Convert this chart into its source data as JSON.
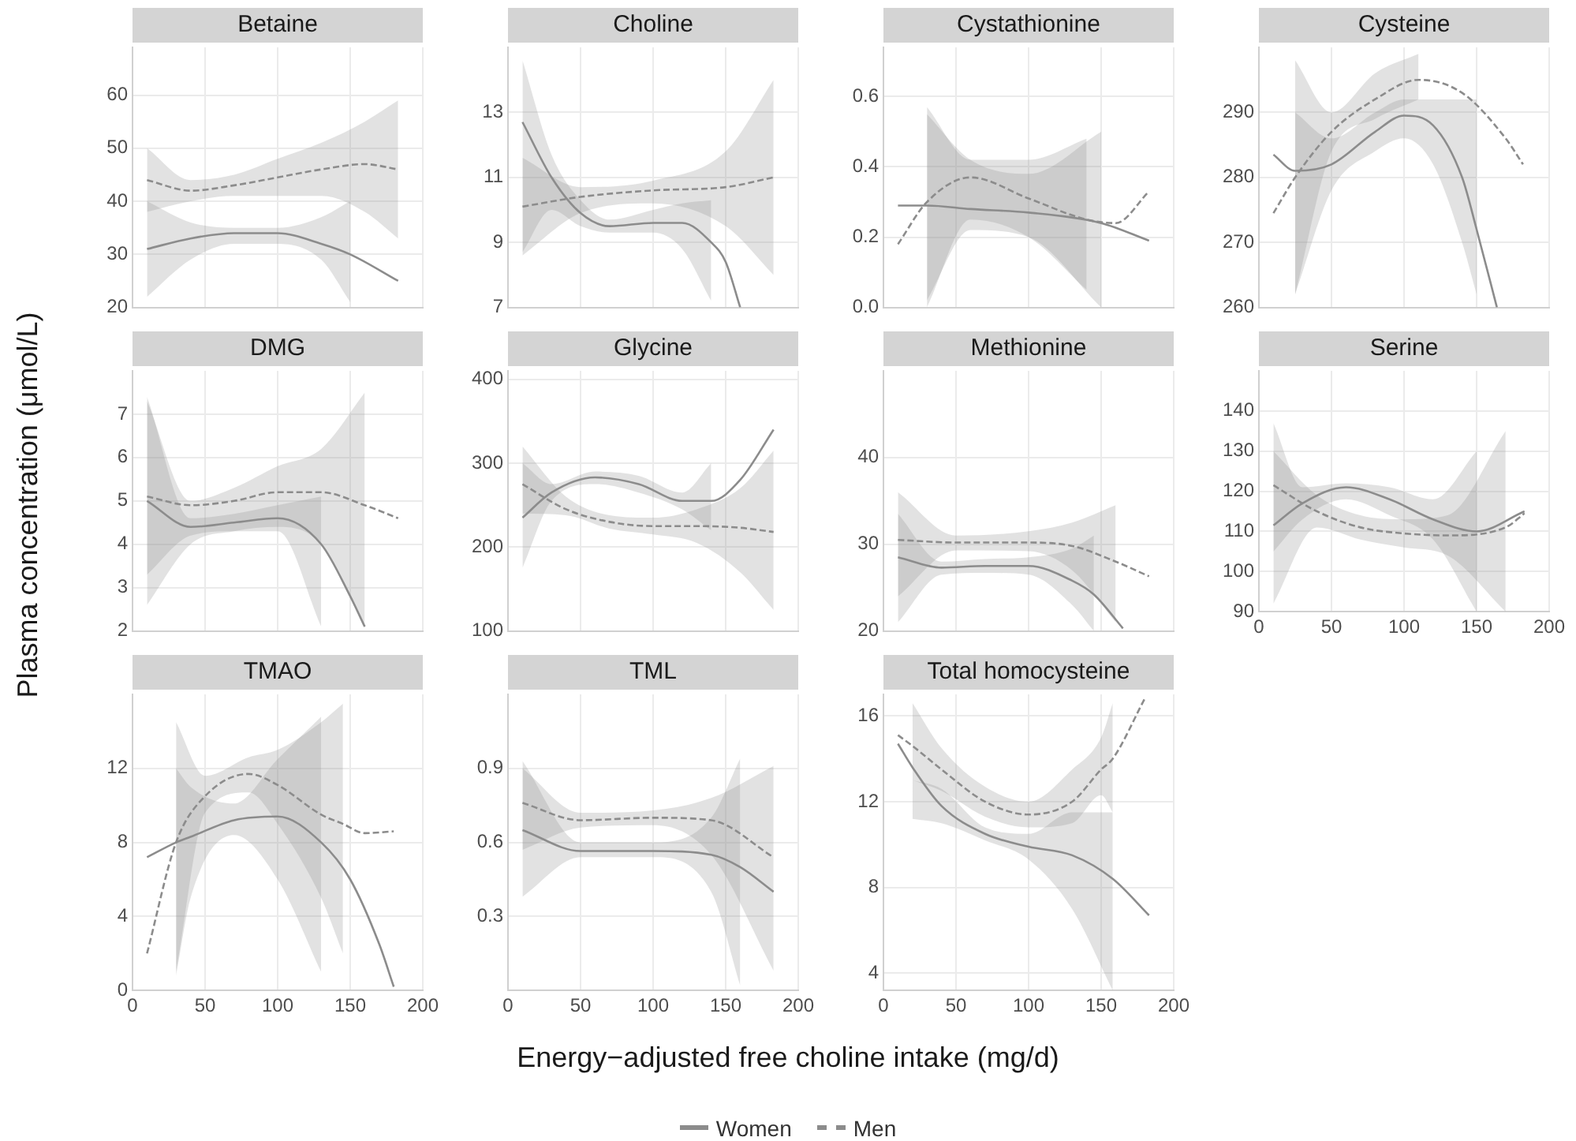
{
  "chart_data": [
    {
      "type": "line",
      "title": "Betaine",
      "xlabel": "Energy−adjusted free choline intake (mg/d)",
      "ylabel": "Plasma concentration (μmol/L)",
      "legend": "bottom",
      "grid": true,
      "marker": "none",
      "tick_labels": "y",
      "xlim": [
        0,
        200
      ],
      "xticks": [
        0,
        50,
        100,
        150,
        200
      ],
      "ylim": [
        20,
        69
      ],
      "yticks": [
        20,
        30,
        40,
        50,
        60
      ],
      "series": [
        {
          "name": "Women",
          "color": "#8c8c8c",
          "line_style": "solid",
          "x": [
            10,
            40,
            70,
            100,
            130,
            150,
            183
          ],
          "values": [
            31,
            33,
            34,
            34,
            32,
            30,
            25
          ],
          "lower": [
            22,
            29,
            32,
            32,
            29,
            21,
            null
          ],
          "upper": [
            40,
            36,
            35,
            35,
            37,
            40,
            null
          ]
        },
        {
          "name": "Men",
          "color": "#8c8c8c",
          "line_style": "dashed",
          "x": [
            10,
            40,
            70,
            100,
            130,
            160,
            183
          ],
          "values": [
            44,
            42,
            43,
            44.5,
            46,
            47,
            46
          ],
          "lower": [
            38,
            40,
            41,
            41,
            41,
            38,
            33
          ],
          "upper": [
            50,
            44,
            45,
            48,
            51,
            55,
            59
          ]
        }
      ]
    },
    {
      "type": "line",
      "title": "Choline",
      "grid": true,
      "marker": "none",
      "tick_labels": "y",
      "xlim": [
        0,
        200
      ],
      "xticks": [
        0,
        50,
        100,
        150,
        200
      ],
      "ylim": [
        7,
        15
      ],
      "yticks": [
        7,
        9,
        11,
        13
      ],
      "series": [
        {
          "color": "#8c8c8c",
          "line_style": "solid",
          "x": [
            10,
            30,
            50,
            70,
            100,
            120,
            140,
            150,
            160
          ],
          "values": [
            12.7,
            11,
            9.9,
            9.5,
            9.6,
            9.6,
            9,
            8.4,
            7
          ],
          "lower": [
            8.7,
            10,
            9.5,
            9.3,
            9.3,
            8.8,
            7.2,
            null,
            null
          ],
          "upper": [
            14.6,
            11.7,
            10.3,
            9.7,
            10,
            10.2,
            10.3,
            null,
            null
          ]
        },
        {
          "color": "#8c8c8c",
          "line_style": "dashed",
          "x": [
            10,
            50,
            100,
            150,
            183
          ],
          "values": [
            10.1,
            10.4,
            10.6,
            10.7,
            11
          ],
          "lower": [
            8.6,
            9.9,
            10.2,
            9.5,
            8
          ],
          "upper": [
            11.6,
            10.7,
            10.9,
            11.8,
            14
          ]
        }
      ]
    },
    {
      "type": "line",
      "title": "Cystathionine",
      "grid": true,
      "marker": "none",
      "tick_labels": "y",
      "xlim": [
        0,
        200
      ],
      "xticks": [
        0,
        50,
        100,
        150,
        200
      ],
      "ylim": [
        0,
        0.74
      ],
      "yticks": [
        {
          "value": 0,
          "label": "0.0"
        },
        0.2,
        0.4,
        0.6
      ],
      "series": [
        {
          "color": "#8c8c8c",
          "line_style": "solid",
          "x": [
            10,
            30,
            60,
            100,
            150,
            183
          ],
          "values": [
            0.29,
            0.29,
            0.28,
            0.27,
            0.24,
            0.19
          ],
          "lower": [
            null,
            0.02,
            0.22,
            0.2,
            0,
            null
          ],
          "upper": [
            null,
            0.55,
            0.42,
            0.38,
            0.5,
            null
          ]
        },
        {
          "color": "#8c8c8c",
          "line_style": "dashed",
          "x": [
            10,
            30,
            60,
            100,
            140,
            160,
            183
          ],
          "values": [
            0.18,
            0.3,
            0.37,
            0.31,
            0.25,
            0.24,
            0.33
          ],
          "lower": [
            null,
            0,
            0.25,
            0.2,
            0.05,
            null,
            null
          ],
          "upper": [
            null,
            0.57,
            0.42,
            0.42,
            0.48,
            null,
            null
          ]
        }
      ]
    },
    {
      "type": "line",
      "title": "Cysteine",
      "grid": true,
      "marker": "none",
      "tick_labels": "y",
      "xlim": [
        0,
        200
      ],
      "xticks": [
        0,
        50,
        100,
        150,
        200
      ],
      "ylim": [
        260,
        300
      ],
      "yticks": [
        260,
        270,
        280,
        290
      ],
      "series": [
        {
          "color": "#8c8c8c",
          "line_style": "solid",
          "x": [
            10,
            25,
            50,
            80,
            100,
            120,
            140,
            150,
            164
          ],
          "values": [
            283.5,
            281,
            282,
            287,
            289.5,
            288,
            280,
            272,
            260
          ],
          "lower": [
            null,
            262,
            278,
            284,
            286,
            282,
            270,
            262,
            null
          ],
          "upper": [
            null,
            290,
            286,
            290,
            292,
            292,
            292,
            292,
            null
          ]
        },
        {
          "color": "#8c8c8c",
          "line_style": "dashed",
          "x": [
            10,
            25,
            50,
            80,
            110,
            140,
            170,
            182
          ],
          "values": [
            274.5,
            280,
            287,
            292,
            295,
            293,
            286,
            282
          ],
          "lower": [
            null,
            262,
            284,
            289,
            292,
            null,
            null,
            null
          ],
          "upper": [
            null,
            298,
            290,
            296,
            299,
            null,
            null,
            null
          ]
        }
      ]
    },
    {
      "type": "line",
      "title": "DMG",
      "grid": true,
      "marker": "none",
      "tick_labels": "y",
      "xlim": [
        0,
        200
      ],
      "xticks": [
        0,
        50,
        100,
        150,
        200
      ],
      "ylim": [
        2,
        8
      ],
      "yticks": [
        2,
        3,
        4,
        5,
        6,
        7
      ],
      "series": [
        {
          "color": "#8c8c8c",
          "line_style": "solid",
          "x": [
            10,
            40,
            70,
            100,
            130,
            150,
            160
          ],
          "values": [
            5,
            4.4,
            4.5,
            4.6,
            4,
            2.8,
            2.1
          ],
          "lower": [
            3.3,
            4.2,
            4.3,
            4.3,
            2.1,
            null,
            null
          ],
          "upper": [
            7.4,
            4.6,
            4.7,
            4.9,
            5.1,
            null,
            null
          ]
        },
        {
          "color": "#8c8c8c",
          "line_style": "dashed",
          "x": [
            10,
            40,
            70,
            100,
            130,
            160,
            183
          ],
          "values": [
            5.1,
            4.9,
            5,
            5.2,
            5.2,
            4.9,
            4.6
          ],
          "lower": [
            2.6,
            4,
            4.3,
            4.4,
            4,
            2.1,
            null
          ],
          "upper": [
            7.3,
            5,
            5.3,
            5.8,
            6.2,
            7.5,
            null
          ]
        }
      ]
    },
    {
      "type": "line",
      "title": "Glycine",
      "grid": true,
      "marker": "none",
      "tick_labels": "y",
      "xlim": [
        0,
        200
      ],
      "xticks": [
        0,
        50,
        100,
        150,
        200
      ],
      "ylim": [
        100,
        410
      ],
      "yticks": [
        100,
        200,
        300,
        400
      ],
      "series": [
        {
          "color": "#8c8c8c",
          "line_style": "solid",
          "x": [
            10,
            30,
            60,
            90,
            120,
            140,
            160,
            183
          ],
          "values": [
            235,
            265,
            283,
            275,
            255,
            255,
            280,
            340
          ],
          "lower": [
            175,
            255,
            275,
            265,
            245,
            220,
            null,
            null
          ],
          "upper": [
            300,
            275,
            290,
            285,
            265,
            300,
            null,
            null
          ]
        },
        {
          "color": "#8c8c8c",
          "line_style": "dashed",
          "x": [
            10,
            40,
            70,
            100,
            130,
            160,
            183
          ],
          "values": [
            275,
            245,
            230,
            225,
            225,
            223,
            218
          ],
          "lower": [
            240,
            238,
            222,
            215,
            205,
            170,
            125
          ],
          "upper": [
            320,
            260,
            238,
            235,
            245,
            270,
            315
          ]
        }
      ]
    },
    {
      "type": "line",
      "title": "Methionine",
      "grid": true,
      "marker": "none",
      "tick_labels": "y",
      "xlim": [
        0,
        200
      ],
      "xticks": [
        0,
        50,
        100,
        150,
        200
      ],
      "ylim": [
        20,
        50
      ],
      "yticks": [
        20,
        30,
        40
      ],
      "series": [
        {
          "color": "#8c8c8c",
          "line_style": "solid",
          "x": [
            10,
            40,
            70,
            100,
            130,
            145,
            165
          ],
          "values": [
            28.5,
            27.3,
            27.5,
            27.5,
            25.8,
            24.2,
            20.3
          ],
          "lower": [
            21,
            26.5,
            26.7,
            26.5,
            23,
            20,
            null
          ],
          "upper": [
            33.5,
            28,
            28.3,
            28.5,
            29.5,
            31,
            null
          ]
        },
        {
          "color": "#8c8c8c",
          "line_style": "dashed",
          "x": [
            10,
            50,
            100,
            130,
            160,
            183
          ],
          "values": [
            30.5,
            30.2,
            30.2,
            29.8,
            28,
            26.3
          ],
          "lower": [
            24,
            29.3,
            29.2,
            27,
            21,
            null
          ],
          "upper": [
            36,
            31,
            31.5,
            32.5,
            34.5,
            null
          ]
        }
      ]
    },
    {
      "type": "line",
      "title": "Serine",
      "grid": true,
      "marker": "none",
      "xlim": [
        0,
        200
      ],
      "xticks": [
        0,
        50,
        100,
        150,
        200
      ],
      "ylim": [
        90,
        150
      ],
      "yticks": [
        90,
        100,
        110,
        120,
        130,
        140
      ],
      "series": [
        {
          "color": "#8c8c8c",
          "line_style": "solid",
          "x": [
            10,
            30,
            60,
            90,
            120,
            150,
            183
          ],
          "values": [
            111.5,
            117,
            121,
            118,
            113,
            110,
            115
          ],
          "lower": [
            105,
            113,
            118,
            114,
            108,
            90,
            null
          ],
          "upper": [
            137,
            121,
            122,
            121,
            118,
            130,
            null
          ]
        },
        {
          "color": "#8c8c8c",
          "line_style": "dashed",
          "x": [
            10,
            40,
            70,
            100,
            130,
            170,
            183
          ],
          "values": [
            121.5,
            115,
            111,
            109.5,
            109,
            111,
            114.5
          ],
          "lower": [
            92,
            111,
            108,
            106,
            104,
            90,
            null
          ],
          "upper": [
            130,
            119,
            114,
            113,
            114,
            135,
            null
          ]
        }
      ]
    },
    {
      "type": "line",
      "title": "TMAO",
      "grid": true,
      "marker": "none",
      "xlim": [
        0,
        200
      ],
      "xticks": [
        0,
        50,
        100,
        150,
        200
      ],
      "ylim": [
        0,
        16
      ],
      "yticks": [
        0,
        4,
        8,
        12
      ],
      "series": [
        {
          "color": "#8c8c8c",
          "line_style": "solid",
          "x": [
            10,
            30,
            40,
            70,
            100,
            130,
            150,
            170,
            180
          ],
          "values": [
            7.2,
            8,
            8.3,
            9.2,
            9.4,
            8,
            6,
            2.5,
            0.2
          ],
          "lower": [
            null,
            0.8,
            5,
            8.4,
            6,
            1,
            null,
            null,
            null
          ],
          "upper": [
            null,
            12,
            11,
            10.1,
            12.5,
            14.8,
            null,
            null,
            null
          ]
        },
        {
          "color": "#8c8c8c",
          "line_style": "dashed",
          "x": [
            10,
            30,
            50,
            80,
            100,
            130,
            145,
            160,
            180
          ],
          "values": [
            2,
            8,
            10.5,
            11.7,
            11.1,
            9.5,
            9,
            8.5,
            8.6
          ],
          "lower": [
            null,
            1,
            9.6,
            10.7,
            9,
            5,
            2,
            null,
            null
          ],
          "upper": [
            null,
            14.5,
            11.6,
            12.6,
            13,
            14.5,
            15.5,
            null,
            null
          ]
        }
      ]
    },
    {
      "type": "line",
      "title": "TML",
      "grid": true,
      "marker": "none",
      "xlim": [
        0,
        200
      ],
      "xticks": [
        0,
        50,
        100,
        150,
        200
      ],
      "ylim": [
        0,
        1.2
      ],
      "yticks": [
        0.3,
        0.6,
        0.9
      ],
      "series": [
        {
          "color": "#8c8c8c",
          "line_style": "solid",
          "x": [
            10,
            50,
            100,
            140,
            160,
            183
          ],
          "values": [
            0.65,
            0.565,
            0.565,
            0.55,
            0.5,
            0.4
          ],
          "lower": [
            0.38,
            0.54,
            0.54,
            0.4,
            0.02,
            null
          ],
          "upper": [
            0.93,
            0.6,
            0.6,
            0.7,
            0.94,
            null
          ]
        },
        {
          "color": "#8c8c8c",
          "line_style": "dashed",
          "x": [
            10,
            50,
            100,
            140,
            183
          ],
          "values": [
            0.76,
            0.69,
            0.7,
            0.69,
            0.54
          ],
          "lower": [
            0.57,
            0.66,
            0.67,
            0.55,
            0.08
          ],
          "upper": [
            0.9,
            0.72,
            0.73,
            0.78,
            0.91
          ]
        }
      ]
    },
    {
      "type": "line",
      "title": "Total homocysteine",
      "grid": true,
      "marker": "none",
      "xlim": [
        0,
        200
      ],
      "xticks": [
        0,
        50,
        100,
        150,
        200
      ],
      "ylim": [
        3.2,
        17
      ],
      "yticks": [
        4,
        8,
        12,
        16
      ],
      "series": [
        {
          "color": "#8c8c8c",
          "line_style": "solid",
          "x": [
            10,
            20,
            40,
            70,
            100,
            130,
            158,
            183
          ],
          "values": [
            14.7,
            13.6,
            11.8,
            10.5,
            9.9,
            9.5,
            8.4,
            6.7
          ],
          "lower": [
            null,
            11.2,
            11,
            10.2,
            9.3,
            7,
            3.2,
            null
          ],
          "upper": [
            null,
            13,
            12.6,
            10.8,
            10.5,
            11.5,
            11.5,
            null
          ]
        },
        {
          "color": "#8c8c8c",
          "line_style": "dashed",
          "x": [
            10,
            20,
            40,
            70,
            100,
            130,
            150,
            158,
            180
          ],
          "values": [
            15.1,
            14.6,
            13.5,
            12,
            11.4,
            12,
            13.5,
            14,
            16.8
          ],
          "lower": [
            null,
            13,
            12.5,
            11.3,
            10.8,
            11,
            12.3,
            11.5,
            null
          ],
          "upper": [
            null,
            16.6,
            14.5,
            12.7,
            12,
            13.5,
            15,
            16.6,
            null
          ]
        }
      ]
    }
  ]
}
